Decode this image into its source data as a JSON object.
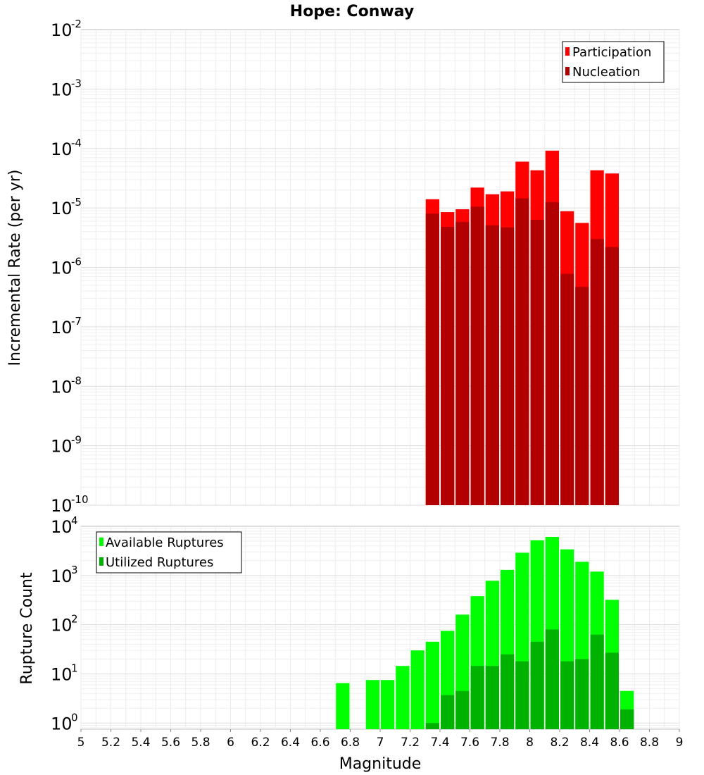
{
  "figure": {
    "title": "Hope: Conway",
    "xlabel": "Magnitude"
  },
  "chart_data": [
    {
      "type": "bar",
      "panel": "top",
      "ylabel": "Incremental Rate (per yr)",
      "yscale": "log",
      "ylim": [
        1e-10,
        0.01
      ],
      "xlim": [
        5,
        9
      ],
      "grid": true,
      "legend_position": "top-right",
      "yticks": [
        {
          "base": "10",
          "exp": "-10"
        },
        {
          "base": "10",
          "exp": "-9"
        },
        {
          "base": "10",
          "exp": "-8"
        },
        {
          "base": "10",
          "exp": "-7"
        },
        {
          "base": "10",
          "exp": "-6"
        },
        {
          "base": "10",
          "exp": "-5"
        },
        {
          "base": "10",
          "exp": "-4"
        },
        {
          "base": "10",
          "exp": "-3"
        },
        {
          "base": "10",
          "exp": "-2"
        }
      ],
      "x": [
        7.35,
        7.45,
        7.55,
        7.65,
        7.75,
        7.85,
        7.95,
        8.05,
        8.15,
        8.25,
        8.35,
        8.45,
        8.55
      ],
      "series": [
        {
          "name": "Participation",
          "color": "#ff0000",
          "values": [
            1.4e-05,
            8.5e-06,
            9.5e-06,
            2.2e-05,
            1.7e-05,
            1.9e-05,
            6e-05,
            4.3e-05,
            9.2e-05,
            8.8e-06,
            5.6e-06,
            4.3e-05,
            3.8e-05
          ]
        },
        {
          "name": "Nucleation",
          "color": "#b20000",
          "values": [
            8e-06,
            4.8e-06,
            5.8e-06,
            1.05e-05,
            5.1e-06,
            4.7e-06,
            1.45e-05,
            6.3e-06,
            1.25e-05,
            7.8e-07,
            4.7e-07,
            3e-06,
            2.2e-06
          ]
        }
      ]
    },
    {
      "type": "bar",
      "panel": "bottom",
      "ylabel": "Rupture Count",
      "yscale": "log",
      "ylim": [
        0.75,
        10000
      ],
      "xlim": [
        5,
        9
      ],
      "grid": true,
      "legend_position": "top-left",
      "yticks": [
        {
          "base": "10",
          "exp": "0"
        },
        {
          "base": "10",
          "exp": "1"
        },
        {
          "base": "10",
          "exp": "2"
        },
        {
          "base": "10",
          "exp": "3"
        },
        {
          "base": "10",
          "exp": "4"
        }
      ],
      "xticks": [
        "5",
        "5.2",
        "5.4",
        "5.6",
        "5.8",
        "6",
        "6.2",
        "6.4",
        "6.6",
        "6.8",
        "7",
        "7.2",
        "7.4",
        "7.6",
        "7.8",
        "8",
        "8.2",
        "8.4",
        "8.6",
        "8.8",
        "9"
      ],
      "x": [
        6.75,
        6.95,
        7.05,
        7.15,
        7.25,
        7.35,
        7.45,
        7.55,
        7.65,
        7.75,
        7.85,
        7.95,
        8.05,
        8.15,
        8.25,
        8.35,
        8.45,
        8.55,
        8.65
      ],
      "series": [
        {
          "name": "Available Ruptures",
          "color": "#00ff00",
          "values": [
            6.5,
            7.5,
            7.5,
            14.5,
            30,
            45,
            75,
            160,
            380,
            780,
            1300,
            2900,
            5200,
            6100,
            3400,
            1900,
            1200,
            320,
            4.5
          ]
        },
        {
          "name": "Utilized Ruptures",
          "color": "#00b200",
          "values": [
            0,
            0,
            0,
            0,
            0,
            1.0,
            3.7,
            4.5,
            14.5,
            14.5,
            25,
            18,
            45,
            80,
            18,
            20,
            63,
            27,
            1.9
          ]
        }
      ]
    }
  ]
}
